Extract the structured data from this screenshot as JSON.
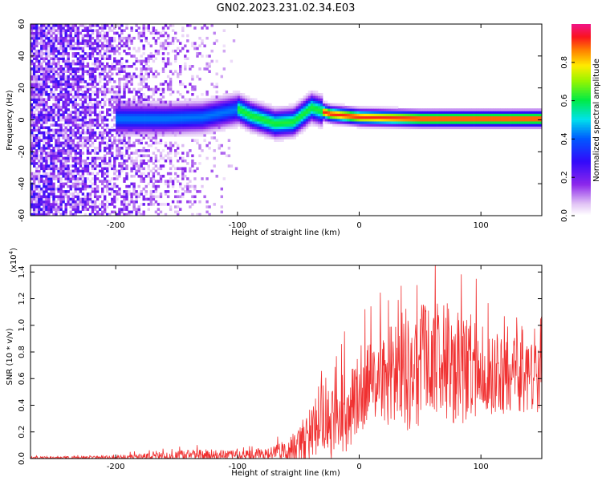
{
  "figure": {
    "title": "GN02.2023.231.02.34.E03"
  },
  "chart_data": [
    {
      "type": "heatmap",
      "xlabel": "Height of straight line (km)",
      "ylabel": "Frequency (Hz)",
      "xlim": [
        -270,
        150
      ],
      "ylim": [
        -60,
        60
      ],
      "x_ticks": [
        -200,
        -100,
        0,
        100
      ],
      "x_tick_labels": [
        "-200",
        "-100",
        "0",
        "100"
      ],
      "y_ticks": [
        -60,
        -40,
        -20,
        0,
        20,
        40,
        60
      ],
      "y_tick_labels": [
        "-60",
        "-40",
        "-20",
        "0",
        "20",
        "40",
        "60"
      ],
      "colorbar": {
        "label": "Normalized spectral amplitude",
        "range": [
          0,
          1
        ],
        "ticks": [
          0.0,
          0.2,
          0.4,
          0.6,
          0.8
        ],
        "tick_labels": [
          "0.0",
          "0.2",
          "0.4",
          "0.6",
          "0.8"
        ],
        "colormap": "rainbow (white-purple-blue-cyan-green-yellow-orange-red-magenta)"
      },
      "signal_band_center_hz": [
        {
          "x": -200,
          "y": 0
        },
        {
          "x": -160,
          "y": 0
        },
        {
          "x": -130,
          "y": 1
        },
        {
          "x": -100,
          "y": 6
        },
        {
          "x": -90,
          "y": 2
        },
        {
          "x": -70,
          "y": -3
        },
        {
          "x": -55,
          "y": -2
        },
        {
          "x": -40,
          "y": 7
        },
        {
          "x": -25,
          "y": 3
        },
        {
          "x": 0,
          "y": 1
        },
        {
          "x": 50,
          "y": 0
        },
        {
          "x": 150,
          "y": 0
        }
      ]
    },
    {
      "type": "line",
      "xlabel": "Height of straight line (km)",
      "ylabel": "SNR (10 * v/v)",
      "y_scale_note": "(x10",
      "y_scale_exponent": "4",
      "y_scale_suffix": ")",
      "xlim": [
        -270,
        150
      ],
      "ylim": [
        0,
        1.45
      ],
      "x_ticks": [
        -200,
        -100,
        0,
        100
      ],
      "x_tick_labels": [
        "-200",
        "-100",
        "0",
        "100"
      ],
      "y_ticks": [
        0,
        0.2,
        0.4,
        0.6,
        0.8,
        1.0,
        1.2,
        1.4
      ],
      "y_tick_labels": [
        "0.0",
        "0.2",
        "0.4",
        "0.6",
        "0.8",
        "1.0",
        "1.2",
        "1.4"
      ],
      "series_color": "#f03030",
      "envelope": [
        {
          "x": -270,
          "mean": 0.005,
          "amp": 0.01
        },
        {
          "x": -200,
          "mean": 0.008,
          "amp": 0.015
        },
        {
          "x": -170,
          "mean": 0.015,
          "amp": 0.03
        },
        {
          "x": -130,
          "mean": 0.02,
          "amp": 0.05
        },
        {
          "x": -100,
          "mean": 0.02,
          "amp": 0.04
        },
        {
          "x": -80,
          "mean": 0.03,
          "amp": 0.05
        },
        {
          "x": -60,
          "mean": 0.06,
          "amp": 0.08
        },
        {
          "x": -45,
          "mean": 0.12,
          "amp": 0.15
        },
        {
          "x": -35,
          "mean": 0.25,
          "amp": 0.25
        },
        {
          "x": -25,
          "mean": 0.3,
          "amp": 0.35
        },
        {
          "x": -10,
          "mean": 0.35,
          "amp": 0.3
        },
        {
          "x": 0,
          "mean": 0.5,
          "amp": 0.3
        },
        {
          "x": 20,
          "mean": 0.6,
          "amp": 0.35
        },
        {
          "x": 40,
          "mean": 0.7,
          "amp": 0.5
        },
        {
          "x": 60,
          "mean": 0.75,
          "amp": 0.45
        },
        {
          "x": 80,
          "mean": 0.7,
          "amp": 0.45
        },
        {
          "x": 100,
          "mean": 0.65,
          "amp": 0.35
        },
        {
          "x": 120,
          "mean": 0.62,
          "amp": 0.3
        },
        {
          "x": 150,
          "mean": 0.6,
          "amp": 0.25
        }
      ]
    }
  ]
}
